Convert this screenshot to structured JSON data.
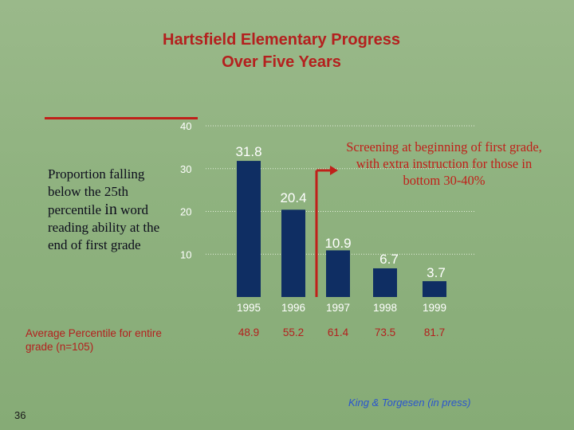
{
  "title_line1": "Hartsfield Elementary Progress",
  "title_line2": "Over Five Years",
  "y_axis_label_a": "Proportion falling below the 25th percentile ",
  "y_axis_label_b": "in",
  "y_axis_label_c": " word reading ability at the end of first grade",
  "annotation": "Screening at beginning of first grade, with extra instruction for those in bottom 30-40%",
  "average_label": "Average Percentile for entire grade (n=105)",
  "source": "King & Torgesen (in press)",
  "slide_number": "36",
  "colors": {
    "bar": "#0f2e63",
    "title": "#b4201e",
    "annotation": "#c0201a",
    "source": "#2a55cf",
    "background": "#8fb27f"
  },
  "chart_data": {
    "type": "bar",
    "categories": [
      "1995",
      "1996",
      "1997",
      "1998",
      "1999"
    ],
    "values": [
      31.8,
      20.4,
      10.9,
      6.7,
      3.7
    ],
    "value_labels": [
      "31.8",
      "20.4",
      "10.9",
      "6.7",
      "3.7"
    ],
    "average_percentile": [
      "48.9",
      "55.2",
      "61.4",
      "73.5",
      "81.7"
    ],
    "y_ticks": [
      "10",
      "20",
      "30",
      "40"
    ],
    "ylim": [
      0,
      40
    ],
    "grid": "dotted horizontal lines at 10, 20, 30, 40",
    "intervention_marker": "arrow between 1996 and 1997"
  }
}
